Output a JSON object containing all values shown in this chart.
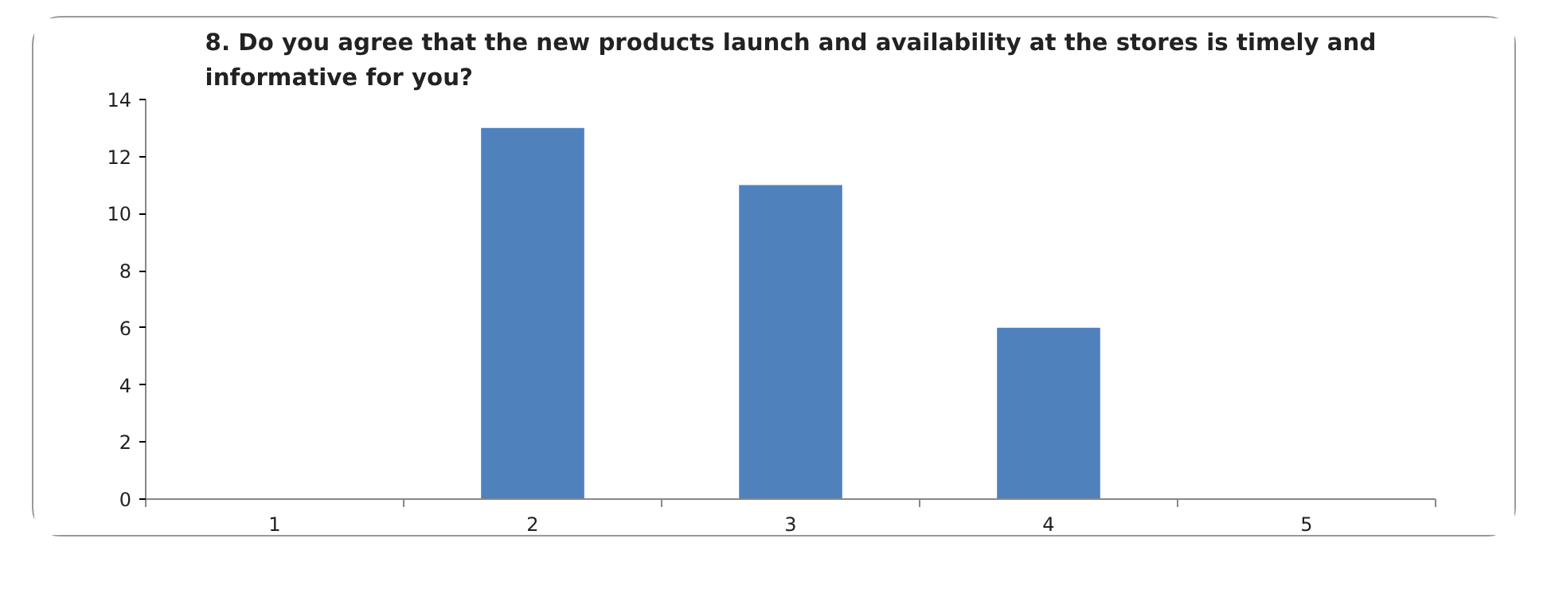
{
  "chart_data": {
    "type": "bar",
    "title": "8. Do you agree that the new products launch and availability at the stores is timely and\ninformative for you?",
    "categories": [
      "1",
      "2",
      "3",
      "4",
      "5"
    ],
    "values": [
      0,
      13,
      11,
      6,
      0
    ],
    "color": "#4f81bd",
    "ylim": [
      0,
      14
    ],
    "yticks": [
      0,
      2,
      4,
      6,
      8,
      10,
      12,
      14
    ],
    "grid": false
  }
}
